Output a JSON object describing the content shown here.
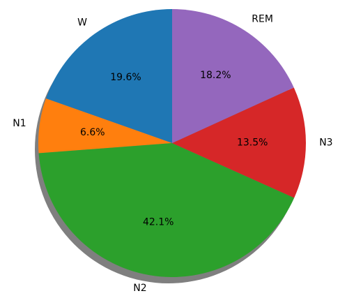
{
  "chart_data": {
    "type": "pie",
    "title": "",
    "start_angle_deg": 90,
    "direction": "counterclockwise",
    "shadow": true,
    "slices": [
      {
        "label": "W",
        "pct_text": "19.6%",
        "value": 19.6,
        "color": "#1f77b4"
      },
      {
        "label": "N1",
        "pct_text": "6.6%",
        "value": 6.6,
        "color": "#ff7f0e"
      },
      {
        "label": "N2",
        "pct_text": "42.1%",
        "value": 42.1,
        "color": "#2ca02c"
      },
      {
        "label": "N3",
        "pct_text": "13.5%",
        "value": 13.5,
        "color": "#d62728"
      },
      {
        "label": "REM",
        "pct_text": "18.2%",
        "value": 18.2,
        "color": "#9467bd"
      }
    ]
  }
}
